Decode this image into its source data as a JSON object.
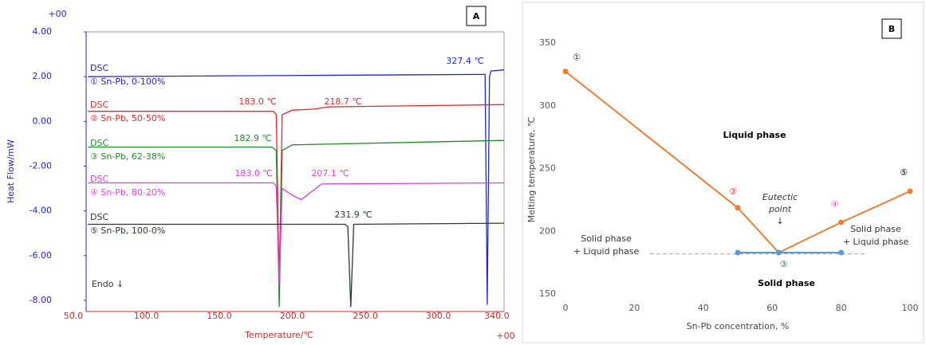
{
  "chart_data": [
    {
      "type": "line",
      "panel_label": "A",
      "xlabel": "Temperature/℃",
      "ylabel": "Heat Flow/mW",
      "y_exponent": "+00",
      "x_exponent": "+00",
      "xlim": [
        50,
        345
      ],
      "ylim": [
        -8.5,
        4.0
      ],
      "xticks": [
        {
          "value": 50,
          "label": "50.0"
        },
        {
          "value": 100,
          "label": "100.0"
        },
        {
          "value": 150,
          "label": "150.0"
        },
        {
          "value": 200,
          "label": "200.0"
        },
        {
          "value": 250,
          "label": "250.0"
        },
        {
          "value": 300,
          "label": "300.0"
        },
        {
          "value": 340,
          "label": "340.0"
        }
      ],
      "yticks": [
        {
          "value": 4,
          "label": "4.00"
        },
        {
          "value": 2,
          "label": "2.00"
        },
        {
          "value": 0,
          "label": "0.00"
        },
        {
          "value": -2,
          "label": "-2.00"
        },
        {
          "value": -4,
          "label": "-4.00"
        },
        {
          "value": -6,
          "label": "-6.00"
        },
        {
          "value": -8,
          "label": "-8.00"
        }
      ],
      "series": [
        {
          "name": "① Sn-Pb, 0-100%",
          "tag": "DSC",
          "color": "#2323d8",
          "x": [
            60,
            330,
            332,
            333.5,
            335,
            336,
            345
          ],
          "values": [
            2.0,
            2.1,
            2.1,
            -8.2,
            2.0,
            2.25,
            2.3
          ]
        },
        {
          "name": "② Sn-Pb, 50-50%",
          "tag": "DSC",
          "color": "#e8262b",
          "x": [
            60,
            187,
            189,
            191,
            193,
            200,
            215,
            225,
            345
          ],
          "values": [
            0.45,
            0.45,
            0.3,
            -7.3,
            0.3,
            0.5,
            0.55,
            0.65,
            0.75
          ]
        },
        {
          "name": "③ Sn-Pb, 62-38%",
          "tag": "DSC",
          "color": "#1e8a2a",
          "x": [
            60,
            186,
            189,
            191,
            193,
            200,
            345
          ],
          "values": [
            -1.15,
            -1.15,
            -1.3,
            -8.3,
            -1.3,
            -1.05,
            -0.85
          ]
        },
        {
          "name": "④ Sn-Pb, 80-20%",
          "tag": "DSC",
          "color": "#e83ad8",
          "x": [
            60,
            187,
            189,
            191,
            193,
            200,
            206,
            212,
            220,
            345
          ],
          "values": [
            -2.75,
            -2.75,
            -2.9,
            -7.3,
            -3.0,
            -3.3,
            -3.5,
            -3.2,
            -2.8,
            -2.75
          ]
        },
        {
          "name": "⑤ Sn-Pb, 100-0%",
          "tag": "DSC",
          "color": "#2a3b2a",
          "x": [
            60,
            236,
            238,
            240,
            242,
            345
          ],
          "values": [
            -4.6,
            -4.6,
            -4.7,
            -8.3,
            -4.6,
            -4.55
          ]
        }
      ],
      "annotations": [
        "327.4 ℃",
        "183.0 ℃",
        "218.7 ℃",
        "182.9 ℃",
        "183.0 ℃",
        "207.1 ℃",
        "231.9 ℃",
        "Endo ↓"
      ]
    },
    {
      "type": "line",
      "panel_label": "B",
      "xlabel": "Sn-Pb concentration, %",
      "ylabel": "Melting temperature, ℃",
      "xlim": [
        0,
        100
      ],
      "ylim": [
        150,
        350
      ],
      "xticks": [
        0,
        20,
        40,
        60,
        80,
        100
      ],
      "yticks": [
        150,
        200,
        250,
        300,
        350
      ],
      "series": [
        {
          "color": "#999999",
          "dash": true,
          "markers": false,
          "x": [
            24.5,
            87
          ],
          "values": [
            182,
            182
          ]
        },
        {
          "color": "#ed7d31",
          "markers": true,
          "x": [
            0,
            50,
            61.9,
            80,
            100
          ],
          "values": [
            327.4,
            218.7,
            183,
            207.1,
            231.9
          ],
          "point_labels": [
            "①",
            "②",
            "③",
            "④",
            "⑤"
          ],
          "point_label_colors": [
            "#2323d8",
            "#e8262b",
            "#1e8a2a",
            "#e83ad8",
            "#000000"
          ]
        },
        {
          "color": "#5b9bd5",
          "markers": true,
          "x": [
            50,
            61.9,
            80
          ],
          "values": [
            183,
            183,
            183
          ]
        }
      ],
      "annotations": [
        "Liquid phase",
        "Solid phase",
        "Solid phase",
        "+ Liquid phase",
        "Eutectic",
        "point",
        "↓",
        "Solid phase",
        "+ Liquid phase"
      ]
    }
  ]
}
